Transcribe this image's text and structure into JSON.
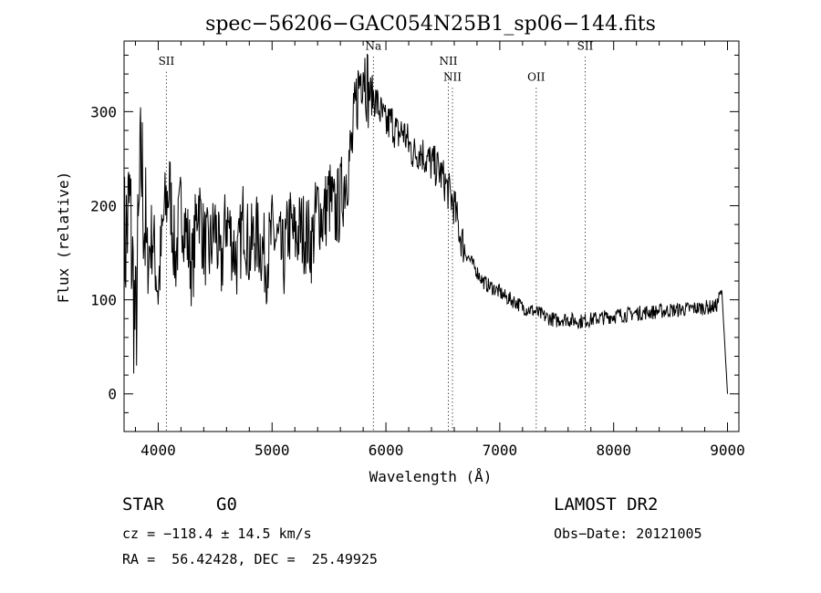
{
  "chart_data": {
    "type": "line",
    "title": "spec−56206−GAC054N25B1_sp06−144.fits",
    "xlabel": "Wavelength (Å)",
    "ylabel": "Flux (relative)",
    "xlim": [
      3700,
      9100
    ],
    "ylim": [
      -40,
      375
    ],
    "xticks": [
      4000,
      5000,
      6000,
      7000,
      8000,
      9000
    ],
    "yticks": [
      0,
      100,
      200,
      300
    ],
    "x": [
      3700,
      3750,
      3800,
      3850,
      3900,
      3950,
      4000,
      4050,
      4100,
      4150,
      4200,
      4250,
      4300,
      4350,
      4400,
      4450,
      4500,
      4550,
      4600,
      4650,
      4700,
      4750,
      4800,
      4850,
      4900,
      4950,
      5000,
      5050,
      5100,
      5150,
      5200,
      5250,
      5300,
      5350,
      5400,
      5450,
      5500,
      5550,
      5600,
      5650,
      5700,
      5750,
      5800,
      5850,
      5900,
      5950,
      6000,
      6050,
      6100,
      6150,
      6200,
      6250,
      6300,
      6350,
      6400,
      6450,
      6500,
      6550,
      6600,
      6650,
      6700,
      6750,
      6800,
      6850,
      6900,
      6950,
      7000,
      7050,
      7100,
      7150,
      7200,
      7250,
      7300,
      7350,
      7400,
      7450,
      7500,
      7550,
      7600,
      7650,
      7700,
      7750,
      7800,
      7850,
      7900,
      7950,
      8000,
      8050,
      8100,
      8150,
      8200,
      8250,
      8300,
      8350,
      8400,
      8450,
      8500,
      8550,
      8600,
      8650,
      8700,
      8750,
      8800,
      8850,
      8900,
      8950,
      9000
    ],
    "y": [
      150,
      200,
      60,
      250,
      140,
      170,
      110,
      190,
      220,
      140,
      200,
      170,
      130,
      210,
      160,
      150,
      180,
      130,
      190,
      160,
      140,
      190,
      150,
      170,
      160,
      140,
      170,
      160,
      140,
      180,
      165,
      175,
      170,
      160,
      200,
      185,
      210,
      190,
      205,
      235,
      260,
      320,
      355,
      320,
      315,
      300,
      285,
      290,
      275,
      280,
      265,
      255,
      260,
      250,
      245,
      240,
      230,
      215,
      200,
      170,
      150,
      140,
      130,
      120,
      115,
      112,
      108,
      103,
      100,
      97,
      92,
      90,
      88,
      85,
      82,
      80,
      78,
      80,
      79,
      78,
      77,
      78,
      79,
      80,
      81,
      82,
      83,
      84,
      84,
      85,
      86,
      86,
      87,
      87,
      88,
      88,
      89,
      89,
      90,
      90,
      91,
      91,
      92,
      92,
      93,
      110,
      0
    ],
    "lines": [
      {
        "label": "SII",
        "x": 4072,
        "label_y": 350
      },
      {
        "label": "Na",
        "x": 5890,
        "label_y": 366
      },
      {
        "label": "NII",
        "x": 6548,
        "label_y": 350
      },
      {
        "label": "NII",
        "x": 6584,
        "label_y": 333
      },
      {
        "label": "OII",
        "x": 7320,
        "label_y": 333
      },
      {
        "label": "SII",
        "x": 7750,
        "label_y": 366
      }
    ],
    "grid": false,
    "legend": "none"
  },
  "info": {
    "object_class": "STAR",
    "subclass": "G0",
    "survey": "LAMOST DR2",
    "cz": "cz = −118.4 ± 14.5 km/s",
    "obs_date": "Obs−Date: 20121005",
    "coords": "RA =  56.42428, DEC =  25.49925"
  }
}
